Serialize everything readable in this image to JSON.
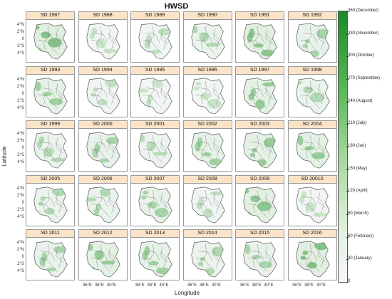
{
  "figure": {
    "title": "HWSD",
    "xlabel": "Longitude",
    "ylabel": "Latitude",
    "lat_ticks": [
      "4°N",
      "2°N",
      "0",
      "2°S",
      "4°S"
    ],
    "lon_ticks": [
      "36°E",
      "38°E",
      "40°E"
    ]
  },
  "colorbar": {
    "ticks": [
      "0",
      "30 (January)",
      "60 (February)",
      "90 (March)",
      "120 (April)",
      "150 (May)",
      "180 (Jun)",
      "210 (July)",
      "240 (August)",
      "270 (September)",
      "300 (October)",
      "330 (November)",
      "360 (December)"
    ],
    "color_low": "#f7f8fc",
    "color_high": "#1a8a2a"
  },
  "panels": [
    {
      "label": "SD_1987",
      "level": 0.55
    },
    {
      "label": "SD_1988",
      "level": 0.15
    },
    {
      "label": "SD_1989",
      "level": 0.2
    },
    {
      "label": "SD_1990",
      "level": 0.3
    },
    {
      "label": "SD_1991",
      "level": 0.5
    },
    {
      "label": "SD_1992",
      "level": 0.35
    },
    {
      "label": "SD_1993",
      "level": 0.4
    },
    {
      "label": "SD_1994",
      "level": 0.2
    },
    {
      "label": "SD_1995",
      "level": 0.15
    },
    {
      "label": "SD_1996",
      "level": 0.15
    },
    {
      "label": "SD_1997",
      "level": 0.45
    },
    {
      "label": "SD_1998",
      "level": 0.3
    },
    {
      "label": "SD_1999",
      "level": 0.3
    },
    {
      "label": "SD_2000",
      "level": 0.35
    },
    {
      "label": "SD_2001",
      "level": 0.25
    },
    {
      "label": "SD_2002",
      "level": 0.4
    },
    {
      "label": "SD_2003",
      "level": 0.45
    },
    {
      "label": "SD_2004",
      "level": 0.45
    },
    {
      "label": "SD_2005",
      "level": 0.3
    },
    {
      "label": "SD_2006",
      "level": 0.3
    },
    {
      "label": "SD_2007",
      "level": 0.35
    },
    {
      "label": "SD_2008",
      "level": 0.2
    },
    {
      "label": "SD_2009",
      "level": 0.5
    },
    {
      "label": "SD_20010",
      "level": 0.15
    },
    {
      "label": "SD_2011",
      "level": 0.35
    },
    {
      "label": "SD_2012",
      "level": 0.45
    },
    {
      "label": "SD_2013",
      "level": 0.4
    },
    {
      "label": "SD_2014",
      "level": 0.3
    },
    {
      "label": "SD_2015",
      "level": 0.35
    },
    {
      "label": "SD_2016",
      "level": 0.55
    }
  ]
}
